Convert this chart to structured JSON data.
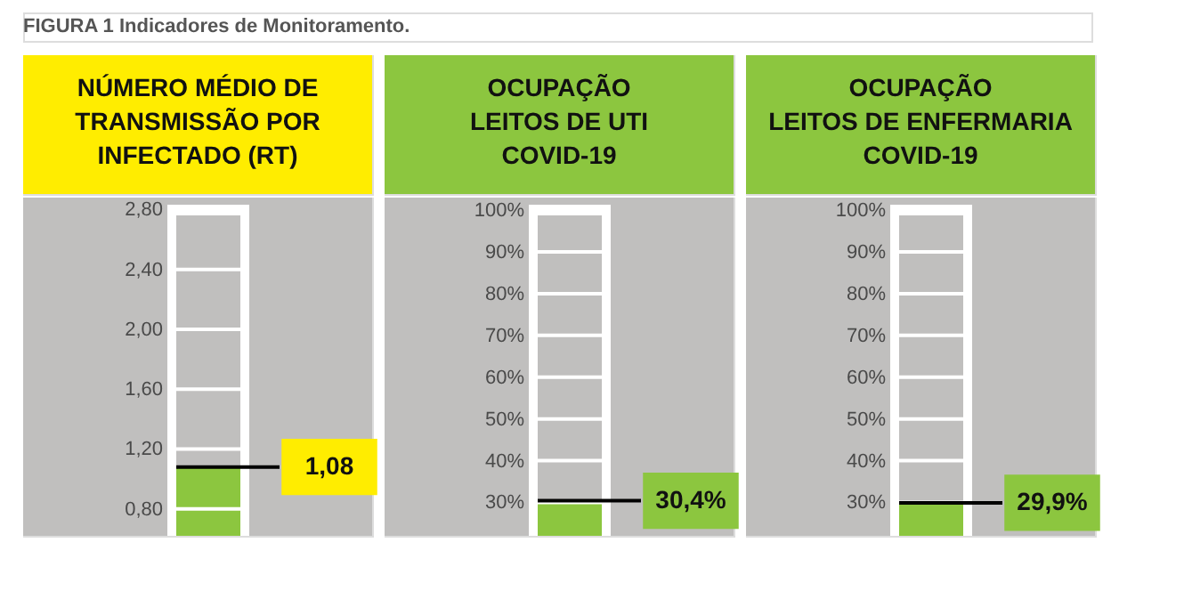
{
  "chart_data": [
    {
      "type": "bar",
      "title": "NÚMERO MÉDIO DE\nTRANSMISSÃO POR\nINFECTADO (RT)",
      "annotations": [
        "FIGURA 1 Indicadores de Monitoramento."
      ],
      "categories": [
        null
      ],
      "values": [
        1.08
      ],
      "value_labels": [
        "1,08"
      ],
      "color": "#8cc63f",
      "ylim": [
        0.62,
        2.88
      ],
      "yticks": [
        {
          "value": 0.8,
          "label": "0,80"
        },
        {
          "value": 1.2,
          "label": "1,20"
        },
        {
          "value": 1.6,
          "label": "1,60"
        },
        {
          "value": 2.0,
          "label": "2,00"
        },
        {
          "value": 2.4,
          "label": "2,40"
        },
        {
          "value": 2.8,
          "label": "2,80"
        }
      ],
      "grid": "y"
    },
    {
      "type": "bar",
      "title": "OCUPAÇÃO\nLEITOS DE UTI\nCOVID-19",
      "categories": [
        null
      ],
      "values": [
        30.4
      ],
      "value_labels": [
        "30,4%"
      ],
      "color": "#8cc63f",
      "ylim": [
        22,
        103
      ],
      "yticks": [
        {
          "value": 30,
          "label": "30%"
        },
        {
          "value": 40,
          "label": "40%"
        },
        {
          "value": 50,
          "label": "50%"
        },
        {
          "value": 60,
          "label": "60%"
        },
        {
          "value": 70,
          "label": "70%"
        },
        {
          "value": 80,
          "label": "80%"
        },
        {
          "value": 90,
          "label": "90%"
        },
        {
          "value": 100,
          "label": "100%"
        }
      ],
      "grid": "y"
    },
    {
      "type": "bar",
      "title": "OCUPAÇÃO\nLEITOS DE ENFERMARIA\nCOVID-19",
      "categories": [
        null
      ],
      "values": [
        29.9
      ],
      "value_labels": [
        "29,9%"
      ],
      "color": "#8cc63f",
      "ylim": [
        22,
        103
      ],
      "yticks": [
        {
          "value": 30,
          "label": "30%"
        },
        {
          "value": 40,
          "label": "40%"
        },
        {
          "value": 50,
          "label": "50%"
        },
        {
          "value": 60,
          "label": "60%"
        },
        {
          "value": 70,
          "label": "70%"
        },
        {
          "value": 80,
          "label": "80%"
        },
        {
          "value": 90,
          "label": "90%"
        },
        {
          "value": 100,
          "label": "100%"
        }
      ],
      "grid": "y"
    }
  ]
}
